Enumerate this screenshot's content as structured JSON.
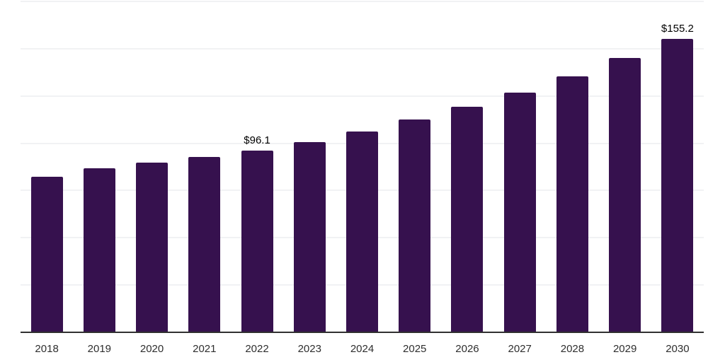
{
  "chart_data": {
    "type": "bar",
    "title": "",
    "xlabel": "",
    "ylabel": "",
    "categories": [
      "2018",
      "2019",
      "2020",
      "2021",
      "2022",
      "2023",
      "2024",
      "2025",
      "2026",
      "2027",
      "2028",
      "2029",
      "2030"
    ],
    "values": [
      82.3,
      86.9,
      89.7,
      92.6,
      96.1,
      100.7,
      106.2,
      112.5,
      119.3,
      126.8,
      135.2,
      145.0,
      155.2
    ],
    "data_labels": [
      {
        "category": "2022",
        "text": "$96.1"
      },
      {
        "category": "2030",
        "text": "$155.2"
      }
    ],
    "ylim": [
      0,
      175
    ],
    "gridline_step": 25,
    "grid": "horizontal",
    "y_axis_tick_labels_visible": false,
    "legend": "none",
    "colors": {
      "bar": "#36114E",
      "gridline": "#f1f2f4",
      "axis_line": "#303030",
      "x_tick_label": "#2e2e2e",
      "value_label": "#000000",
      "background": "#ffffff"
    }
  }
}
